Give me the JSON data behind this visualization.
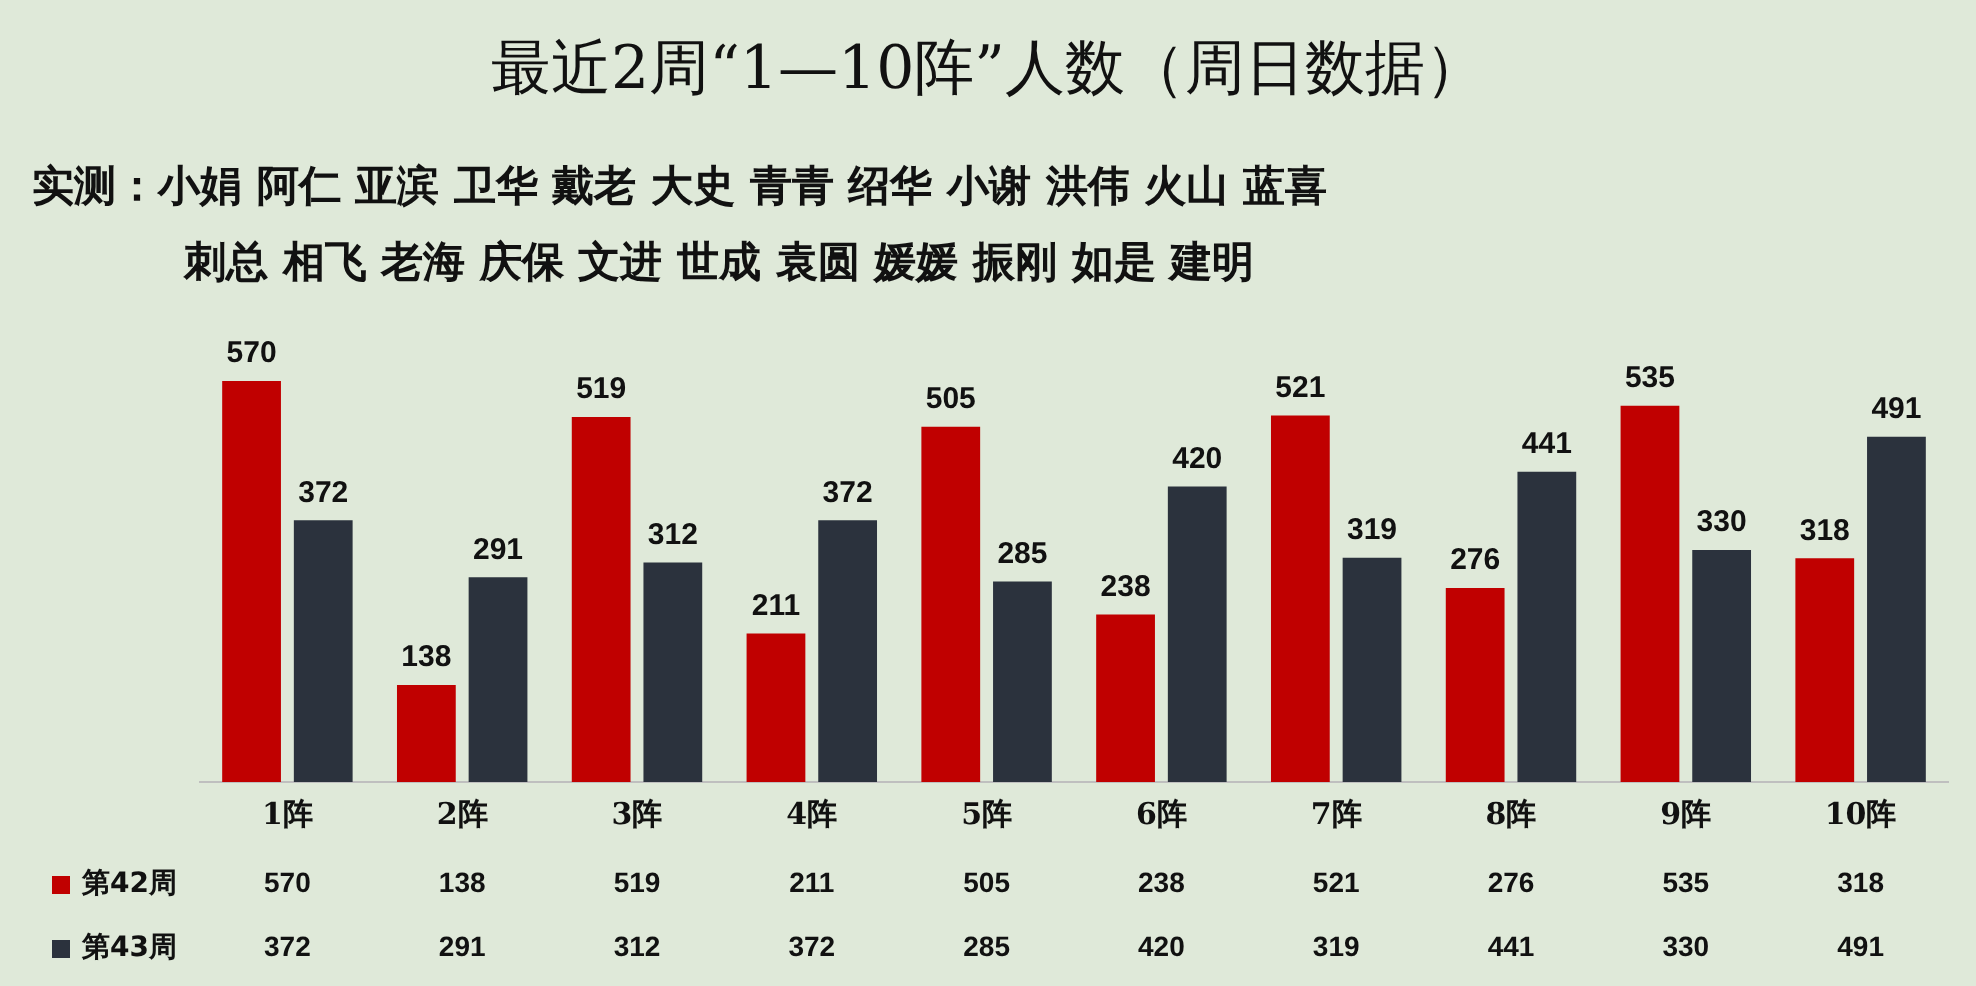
{
  "chart_data": {
    "type": "bar",
    "title": "最近2周“1—10阵”人数（周日数据）",
    "subtitle": "实测：小娟 阿仁 亚滨 卫华 戴老 大史 青青 绍华 小谢 洪伟 火山 蓝喜",
    "annotations": [
      "刺总 相飞 老海 庆保 文进 世成 袁圆 媛媛 振刚 如是 建明",
      "570",
      "138",
      "519",
      "211",
      "505",
      "238",
      "521",
      "276",
      "535",
      "318",
      "372",
      "291",
      "312",
      "372",
      "285",
      "420",
      "319",
      "441",
      "330",
      "491"
    ],
    "categories": [
      "1阵",
      "2阵",
      "3阵",
      "4阵",
      "5阵",
      "6阵",
      "7阵",
      "8阵",
      "9阵",
      "10阵"
    ],
    "series": [
      {
        "name": "第42周",
        "color": "#c00000",
        "values": [
          570,
          138,
          519,
          211,
          505,
          238,
          521,
          276,
          535,
          318
        ]
      },
      {
        "name": "第43周",
        "color": "#2b323d",
        "values": [
          372,
          291,
          312,
          372,
          285,
          420,
          319,
          441,
          330,
          491
        ]
      }
    ],
    "data_labels": true,
    "grid": false,
    "legend": "bottom left"
  }
}
